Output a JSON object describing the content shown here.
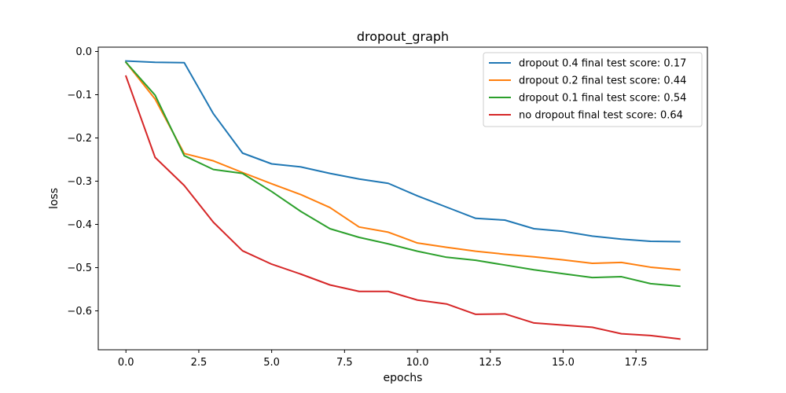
{
  "chart_data": {
    "type": "line",
    "title": "dropout_graph",
    "xlabel": "epochs",
    "ylabel": "loss",
    "xlim": [
      -0.95,
      19.95
    ],
    "ylim": [
      -0.69,
      0.01
    ],
    "xticks": [
      0.0,
      2.5,
      5.0,
      7.5,
      10.0,
      12.5,
      15.0,
      17.5
    ],
    "xtick_labels": [
      "0.0",
      "2.5",
      "5.0",
      "7.5",
      "10.0",
      "12.5",
      "15.0",
      "17.5"
    ],
    "yticks": [
      0.0,
      -0.1,
      -0.2,
      -0.3,
      -0.4,
      -0.5,
      -0.6
    ],
    "ytick_labels": [
      "0.0",
      "−0.1",
      "−0.2",
      "−0.3",
      "−0.4",
      "−0.5",
      "−0.6"
    ],
    "grid": false,
    "legend_position": "top-right",
    "x": [
      0,
      1,
      2,
      3,
      4,
      5,
      6,
      7,
      8,
      9,
      10,
      11,
      12,
      13,
      14,
      15,
      16,
      17,
      18,
      19
    ],
    "series": [
      {
        "name": "dropout 0.4 final test score: 0.17",
        "color": "#1f77b4",
        "values": [
          -0.022,
          -0.025,
          -0.026,
          -0.144,
          -0.235,
          -0.26,
          -0.267,
          -0.282,
          -0.295,
          -0.305,
          -0.334,
          -0.36,
          -0.386,
          -0.39,
          -0.41,
          -0.416,
          -0.427,
          -0.434,
          -0.439,
          -0.44
        ]
      },
      {
        "name": "dropout 0.2 final test score: 0.44",
        "color": "#ff7f0e",
        "values": [
          -0.025,
          -0.11,
          -0.236,
          -0.253,
          -0.28,
          -0.306,
          -0.331,
          -0.361,
          -0.406,
          -0.418,
          -0.443,
          -0.453,
          -0.462,
          -0.469,
          -0.475,
          -0.482,
          -0.49,
          -0.488,
          -0.499,
          -0.505
        ]
      },
      {
        "name": "dropout 0.1 final test score: 0.54",
        "color": "#2ca02c",
        "values": [
          -0.025,
          -0.101,
          -0.241,
          -0.273,
          -0.282,
          -0.324,
          -0.37,
          -0.41,
          -0.43,
          -0.445,
          -0.462,
          -0.476,
          -0.483,
          -0.494,
          -0.505,
          -0.514,
          -0.523,
          -0.521,
          -0.537,
          -0.543
        ]
      },
      {
        "name": "no dropout final test score: 0.64",
        "color": "#d62728",
        "values": [
          -0.057,
          -0.245,
          -0.31,
          -0.395,
          -0.461,
          -0.492,
          -0.515,
          -0.54,
          -0.555,
          -0.555,
          -0.575,
          -0.584,
          -0.608,
          -0.607,
          -0.628,
          -0.633,
          -0.638,
          -0.653,
          -0.657,
          -0.665
        ]
      }
    ]
  }
}
